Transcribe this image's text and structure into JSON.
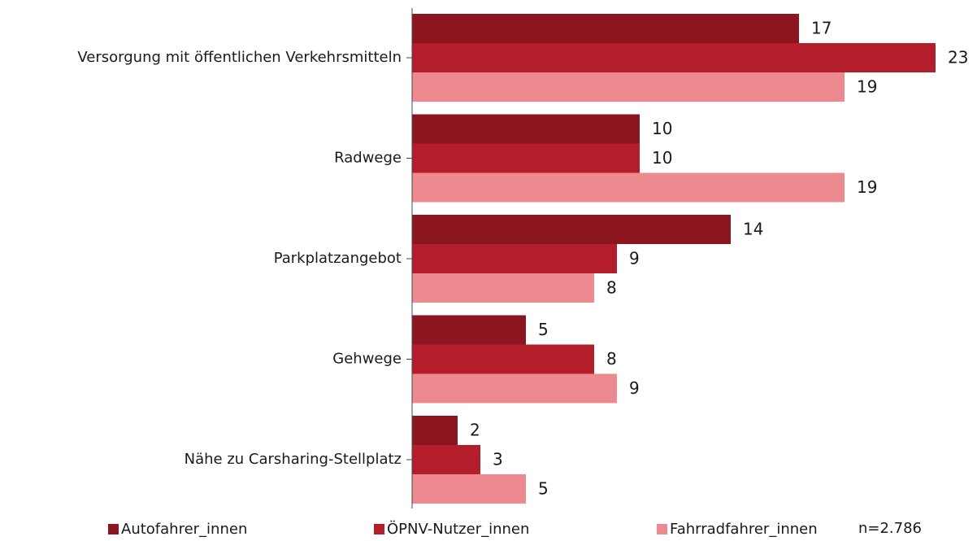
{
  "chart_data": {
    "type": "hbar",
    "categories": [
      "Versorgung mit öffentlichen Verkehrsmitteln",
      "Radwege",
      "Parkplatzangebot",
      "Gehwege",
      "Nähe zu Carsharing-Stellplatz"
    ],
    "series": [
      {
        "name": "Autofahrer_innen",
        "color": "#8c1620",
        "values": [
          17,
          10,
          14,
          5,
          2
        ]
      },
      {
        "name": "ÖPNV-Nutzer_innen",
        "color": "#b41e2b",
        "values": [
          23,
          10,
          9,
          8,
          3
        ]
      },
      {
        "name": "Fahrradfahrer_innen",
        "color": "#ed8a90",
        "values": [
          19,
          19,
          8,
          9,
          5
        ]
      }
    ],
    "xlim": [
      0,
      24
    ],
    "legend": "bottom",
    "note": "n=2.786"
  }
}
